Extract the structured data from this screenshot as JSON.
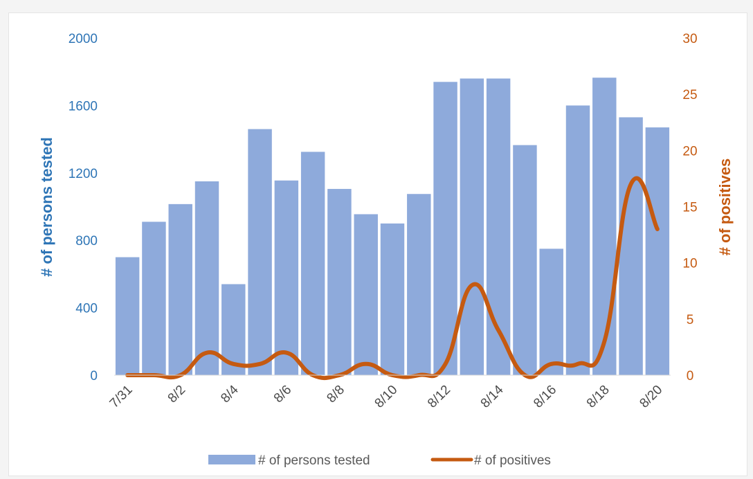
{
  "chart_data": {
    "type": "bar+line",
    "categories": [
      "7/31",
      "8/1",
      "8/2",
      "8/3",
      "8/4",
      "8/5",
      "8/6",
      "8/7",
      "8/8",
      "8/9",
      "8/10",
      "8/11",
      "8/12",
      "8/13",
      "8/14",
      "8/15",
      "8/16",
      "8/17",
      "8/18",
      "8/19",
      "8/20"
    ],
    "x_tick_labels": [
      "7/31",
      "8/2",
      "8/4",
      "8/6",
      "8/8",
      "8/10",
      "8/12",
      "8/14",
      "8/16",
      "8/18",
      "8/20"
    ],
    "series": [
      {
        "name": "# of persons tested",
        "type": "bar",
        "axis": "left",
        "values": [
          700,
          910,
          1015,
          1150,
          540,
          1460,
          1155,
          1325,
          1105,
          955,
          900,
          1075,
          1740,
          1760,
          1760,
          1365,
          750,
          1600,
          1765,
          1530,
          1470
        ]
      },
      {
        "name": "# of positives",
        "type": "line",
        "axis": "right",
        "values": [
          0,
          0,
          0,
          2,
          1,
          1,
          2,
          0,
          0,
          1,
          0,
          0,
          1,
          8,
          4,
          0,
          1,
          1,
          3,
          17,
          13
        ]
      }
    ],
    "ylabel": "# of persons tested",
    "y2label": "# of positives",
    "ylim": [
      0,
      2000
    ],
    "yticks": [
      0,
      400,
      800,
      1200,
      1600,
      2000
    ],
    "y2lim": [
      0,
      30
    ],
    "y2ticks": [
      0,
      5,
      10,
      15,
      20,
      25,
      30
    ],
    "legend": "bottom",
    "grid": false,
    "colors": {
      "bar": "#8eaadb",
      "line": "#c55a11",
      "left_axis_text": "#2e75b6",
      "right_axis_text": "#c55a11"
    }
  }
}
